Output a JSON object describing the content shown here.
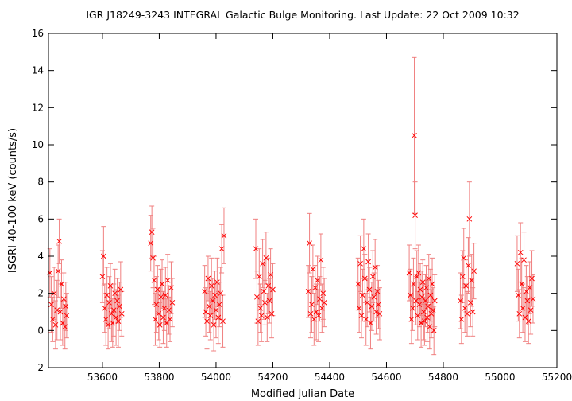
{
  "chart_data": {
    "type": "scatter",
    "title": "IGR J18249-3243    INTEGRAL Galactic Bulge Monitoring.  Last Update: 22 Oct 2009 10:32",
    "xlabel": "Modified Julian Date",
    "ylabel": "ISGRI 40-100 keV (counts/s)",
    "xlim": [
      53410,
      55200
    ],
    "ylim": [
      -2,
      16
    ],
    "x_ticks": [
      53600,
      53800,
      54000,
      54200,
      54400,
      54600,
      54800,
      55000,
      55200
    ],
    "y_ticks": [
      -2,
      0,
      2,
      4,
      6,
      8,
      10,
      12,
      14,
      16
    ],
    "grid": false,
    "marker": "x",
    "error_bars": true,
    "color": "#ff0000",
    "errorbar_color": "#f08080",
    "series": [
      {
        "points": [
          [
            53415,
            3.1,
            1.3
          ],
          [
            53420,
            1.4,
            1.5
          ],
          [
            53425,
            0.6,
            1.2
          ],
          [
            53430,
            2.0,
            1.4
          ],
          [
            53435,
            0.3,
            1.3
          ],
          [
            53440,
            1.1,
            1.6
          ],
          [
            53444,
            3.2,
            1.4
          ],
          [
            53448,
            4.8,
            1.2
          ],
          [
            53452,
            1.0,
            1.5
          ],
          [
            53456,
            2.5,
            1.3
          ],
          [
            53460,
            0.4,
            1.2
          ],
          [
            53464,
            1.7,
            1.4
          ],
          [
            53468,
            0.2,
            1.2
          ],
          [
            53471,
            1.3,
            1.3
          ],
          [
            53474,
            0.8,
            1.2
          ],
          [
            53600,
            2.9,
            1.4
          ],
          [
            53604,
            4.0,
            1.6
          ],
          [
            53608,
            1.2,
            1.3
          ],
          [
            53612,
            0.6,
            1.4
          ],
          [
            53616,
            1.9,
            1.5
          ],
          [
            53620,
            0.3,
            1.3
          ],
          [
            53624,
            1.5,
            1.4
          ],
          [
            53628,
            2.4,
            1.2
          ],
          [
            53632,
            0.9,
            1.5
          ],
          [
            53636,
            0.4,
            1.3
          ],
          [
            53640,
            1.1,
            1.4
          ],
          [
            53644,
            2.0,
            1.3
          ],
          [
            53648,
            0.7,
            1.5
          ],
          [
            53652,
            1.6,
            1.2
          ],
          [
            53656,
            0.5,
            1.4
          ],
          [
            53660,
            1.3,
            1.3
          ],
          [
            53664,
            2.2,
            1.5
          ],
          [
            53668,
            0.9,
            1.2
          ],
          [
            53770,
            4.7,
            1.5
          ],
          [
            53774,
            5.3,
            1.4
          ],
          [
            53778,
            3.9,
            1.6
          ],
          [
            53782,
            2.7,
            1.3
          ],
          [
            53786,
            0.6,
            1.4
          ],
          [
            53790,
            1.4,
            1.5
          ],
          [
            53794,
            2.2,
            1.3
          ],
          [
            53798,
            0.9,
            1.4
          ],
          [
            53802,
            0.3,
            1.2
          ],
          [
            53806,
            1.8,
            1.5
          ],
          [
            53810,
            2.5,
            1.3
          ],
          [
            53814,
            0.7,
            1.4
          ],
          [
            53818,
            1.2,
            1.2
          ],
          [
            53822,
            1.9,
            1.5
          ],
          [
            53826,
            0.4,
            1.3
          ],
          [
            53830,
            2.7,
            1.4
          ],
          [
            53834,
            1.1,
            1.3
          ],
          [
            53838,
            0.6,
            1.2
          ],
          [
            53842,
            2.3,
            1.4
          ],
          [
            53846,
            1.5,
            1.3
          ],
          [
            53960,
            2.1,
            1.4
          ],
          [
            53964,
            1.0,
            1.3
          ],
          [
            53968,
            0.5,
            1.5
          ],
          [
            53972,
            2.8,
            1.2
          ],
          [
            53976,
            1.3,
            1.4
          ],
          [
            53980,
            0.8,
            1.3
          ],
          [
            53984,
            2.4,
            1.5
          ],
          [
            53988,
            1.6,
            1.2
          ],
          [
            53992,
            0.3,
            1.4
          ],
          [
            53996,
            1.9,
            1.3
          ],
          [
            54000,
            1.1,
            1.5
          ],
          [
            54004,
            2.6,
            1.3
          ],
          [
            54008,
            0.7,
            1.4
          ],
          [
            54012,
            1.4,
            1.2
          ],
          [
            54016,
            2.0,
            1.4
          ],
          [
            54020,
            4.4,
            1.3
          ],
          [
            54024,
            0.5,
            1.4
          ],
          [
            54028,
            5.1,
            1.5
          ],
          [
            54140,
            4.4,
            1.6
          ],
          [
            54144,
            1.8,
            1.4
          ],
          [
            54148,
            0.5,
            1.3
          ],
          [
            54152,
            2.9,
            1.5
          ],
          [
            54156,
            1.2,
            1.3
          ],
          [
            54160,
            0.8,
            1.4
          ],
          [
            54164,
            3.6,
            1.3
          ],
          [
            54168,
            2.1,
            1.5
          ],
          [
            54172,
            1.5,
            1.2
          ],
          [
            54176,
            3.9,
            1.4
          ],
          [
            54180,
            0.7,
            1.3
          ],
          [
            54184,
            2.4,
            1.5
          ],
          [
            54188,
            1.6,
            1.2
          ],
          [
            54192,
            3.0,
            1.4
          ],
          [
            54196,
            0.9,
            1.3
          ],
          [
            54200,
            2.2,
            1.4
          ],
          [
            54325,
            2.1,
            1.4
          ],
          [
            54329,
            4.7,
            1.6
          ],
          [
            54333,
            0.9,
            1.3
          ],
          [
            54337,
            1.4,
            1.5
          ],
          [
            54341,
            3.3,
            1.3
          ],
          [
            54345,
            0.6,
            1.4
          ],
          [
            54349,
            2.3,
            1.2
          ],
          [
            54353,
            1.0,
            1.5
          ],
          [
            54357,
            2.7,
            1.3
          ],
          [
            54361,
            0.8,
            1.4
          ],
          [
            54365,
            1.7,
            1.2
          ],
          [
            54369,
            3.8,
            1.4
          ],
          [
            54373,
            1.2,
            1.3
          ],
          [
            54377,
            2.0,
            1.4
          ],
          [
            54381,
            1.5,
            1.3
          ],
          [
            54500,
            2.5,
            1.4
          ],
          [
            54504,
            1.2,
            1.3
          ],
          [
            54508,
            3.6,
            1.5
          ],
          [
            54512,
            0.8,
            1.2
          ],
          [
            54516,
            1.9,
            1.4
          ],
          [
            54520,
            4.4,
            1.6
          ],
          [
            54524,
            2.8,
            1.3
          ],
          [
            54528,
            0.6,
            1.4
          ],
          [
            54532,
            1.5,
            1.3
          ],
          [
            54536,
            3.7,
            1.5
          ],
          [
            54540,
            2.2,
            1.2
          ],
          [
            54544,
            0.4,
            1.4
          ],
          [
            54548,
            1.3,
            1.3
          ],
          [
            54552,
            2.9,
            1.4
          ],
          [
            54556,
            1.8,
            1.3
          ],
          [
            54560,
            3.4,
            1.5
          ],
          [
            54564,
            1.0,
            1.2
          ],
          [
            54568,
            2.1,
            1.4
          ],
          [
            54572,
            1.4,
            1.3
          ],
          [
            54576,
            0.9,
            1.4
          ],
          [
            54680,
            3.1,
            1.5
          ],
          [
            54684,
            1.9,
            1.4
          ],
          [
            54688,
            0.6,
            1.3
          ],
          [
            54692,
            1.2,
            1.2
          ],
          [
            54695,
            2.5,
            1.4
          ],
          [
            54698,
            10.5,
            4.2
          ],
          [
            54701,
            6.2,
            1.8
          ],
          [
            54704,
            1.6,
            1.3
          ],
          [
            54707,
            2.9,
            1.4
          ],
          [
            54710,
            0.8,
            1.3
          ],
          [
            54713,
            3.1,
            1.5
          ],
          [
            54716,
            1.4,
            1.2
          ],
          [
            54719,
            2.2,
            1.4
          ],
          [
            54722,
            0.4,
            1.3
          ],
          [
            54725,
            1.8,
            1.4
          ],
          [
            54728,
            2.6,
            1.2
          ],
          [
            54731,
            1.0,
            1.5
          ],
          [
            54734,
            0.5,
            1.3
          ],
          [
            54737,
            1.6,
            1.4
          ],
          [
            54740,
            2.3,
            1.2
          ],
          [
            54743,
            0.7,
            1.3
          ],
          [
            54746,
            1.3,
            1.4
          ],
          [
            54749,
            2.8,
            1.3
          ],
          [
            54752,
            0.2,
            1.2
          ],
          [
            54755,
            1.9,
            1.4
          ],
          [
            54758,
            0.9,
            1.3
          ],
          [
            54761,
            2.5,
            1.4
          ],
          [
            54764,
            1.1,
            1.2
          ],
          [
            54767,
            0.0,
            1.3
          ],
          [
            54770,
            1.6,
            1.4
          ],
          [
            54860,
            1.6,
            1.5
          ],
          [
            54864,
            0.6,
            1.3
          ],
          [
            54868,
            2.9,
            1.4
          ],
          [
            54872,
            3.9,
            1.6
          ],
          [
            54876,
            1.2,
            1.3
          ],
          [
            54880,
            2.4,
            1.4
          ],
          [
            54884,
            0.9,
            1.2
          ],
          [
            54888,
            3.5,
            1.5
          ],
          [
            54892,
            6.0,
            2.0
          ],
          [
            54896,
            1.5,
            1.3
          ],
          [
            54900,
            2.7,
            1.4
          ],
          [
            54904,
            1.0,
            1.3
          ],
          [
            54908,
            3.2,
            1.5
          ],
          [
            55060,
            3.6,
            1.5
          ],
          [
            55064,
            1.9,
            1.4
          ],
          [
            55068,
            0.9,
            1.3
          ],
          [
            55072,
            4.2,
            1.6
          ],
          [
            55076,
            2.5,
            1.4
          ],
          [
            55080,
            1.2,
            1.3
          ],
          [
            55084,
            3.8,
            1.5
          ],
          [
            55088,
            0.7,
            1.3
          ],
          [
            55092,
            2.1,
            1.4
          ],
          [
            55096,
            1.6,
            1.3
          ],
          [
            55100,
            0.5,
            1.2
          ],
          [
            55104,
            2.3,
            1.4
          ],
          [
            55108,
            1.1,
            1.3
          ],
          [
            55112,
            2.8,
            1.5
          ],
          [
            55116,
            1.7,
            1.3
          ]
        ]
      }
    ]
  }
}
